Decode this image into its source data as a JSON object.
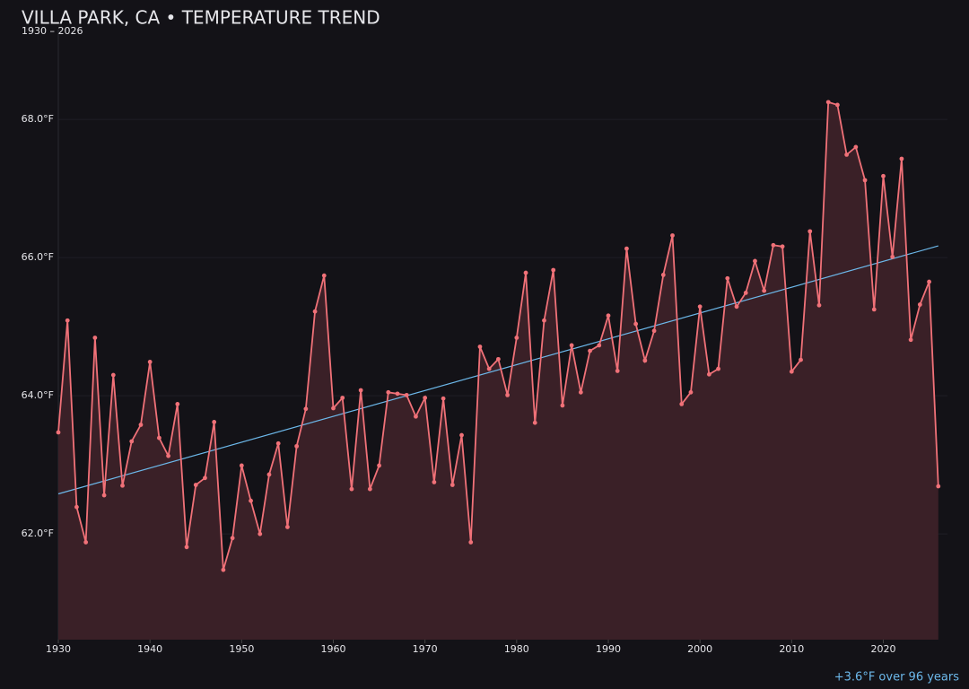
{
  "chart_data": {
    "type": "line",
    "title": "VILLA PARK, CA • TEMPERATURE TREND",
    "subtitle": "1930 – 2026",
    "annotation": "+3.6°F over 96 years",
    "x": [
      1930,
      1931,
      1932,
      1933,
      1934,
      1935,
      1936,
      1937,
      1938,
      1939,
      1940,
      1941,
      1942,
      1943,
      1944,
      1945,
      1946,
      1947,
      1948,
      1949,
      1950,
      1951,
      1952,
      1953,
      1954,
      1955,
      1956,
      1957,
      1958,
      1959,
      1960,
      1961,
      1962,
      1963,
      1964,
      1965,
      1966,
      1967,
      1968,
      1969,
      1970,
      1971,
      1972,
      1973,
      1974,
      1975,
      1976,
      1977,
      1978,
      1979,
      1980,
      1981,
      1982,
      1983,
      1984,
      1985,
      1986,
      1987,
      1988,
      1989,
      1990,
      1991,
      1992,
      1993,
      1994,
      1995,
      1996,
      1997,
      1998,
      1999,
      2000,
      2001,
      2002,
      2003,
      2004,
      2005,
      2006,
      2007,
      2008,
      2009,
      2010,
      2011,
      2012,
      2013,
      2014,
      2015,
      2016,
      2017,
      2018,
      2019,
      2020,
      2021,
      2022,
      2023,
      2024,
      2025,
      2026
    ],
    "series": [
      {
        "color": "#f07178",
        "fill": "#3a2027",
        "values": [
          63.47,
          65.09,
          62.39,
          61.88,
          64.84,
          62.56,
          64.3,
          62.7,
          63.34,
          63.58,
          64.49,
          63.39,
          63.13,
          63.88,
          61.81,
          62.71,
          62.81,
          63.62,
          61.48,
          61.94,
          62.99,
          62.48,
          62.0,
          62.86,
          63.31,
          62.1,
          63.27,
          63.81,
          65.22,
          65.74,
          63.82,
          63.97,
          62.65,
          64.08,
          62.65,
          62.99,
          64.05,
          64.03,
          64.01,
          63.7,
          63.97,
          62.75,
          63.96,
          62.71,
          63.43,
          61.88,
          64.71,
          64.39,
          64.53,
          64.01,
          64.84,
          65.78,
          63.61,
          65.09,
          65.82,
          63.86,
          64.73,
          64.05,
          64.65,
          64.73,
          65.16,
          64.36,
          66.13,
          65.04,
          64.51,
          64.94,
          65.75,
          66.32,
          63.88,
          64.05,
          65.29,
          64.31,
          64.39,
          65.7,
          65.29,
          65.49,
          65.95,
          65.52,
          66.18,
          66.16,
          64.35,
          64.52,
          66.38,
          65.31,
          68.25,
          68.21,
          67.49,
          67.6,
          67.12,
          65.25,
          67.18,
          66.01,
          67.43,
          64.81,
          65.32,
          65.65,
          62.69
        ]
      }
    ],
    "trend": {
      "color": "#6cb8ea",
      "x": [
        1930,
        2026
      ],
      "values": [
        62.58,
        66.17
      ]
    },
    "xlim": [
      1930,
      2027
    ],
    "xticks": [
      1930,
      1940,
      1950,
      1960,
      1970,
      1980,
      1990,
      2000,
      2010,
      2020
    ],
    "ylim": [
      60.47,
      69.3
    ],
    "yticks": [
      {
        "value": 62,
        "label": "62.0°F"
      },
      {
        "value": 64,
        "label": "64.0°F"
      },
      {
        "value": 66,
        "label": "66.0°F"
      },
      {
        "value": 68,
        "label": "68.0°F"
      }
    ],
    "grid": true
  }
}
